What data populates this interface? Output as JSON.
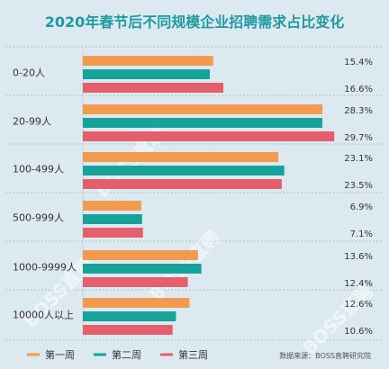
{
  "chart_data": {
    "type": "bar",
    "orientation": "horizontal",
    "title": "2020年春节后不同规模企业招聘需求占比变化",
    "categories": [
      "0-20人",
      "20-99人",
      "100-499人",
      "500-999人",
      "1000-9999人",
      "10000人以上"
    ],
    "series": [
      {
        "name": "第一周",
        "color": "#f29b4e",
        "values": [
          15.4,
          28.3,
          23.1,
          6.9,
          13.6,
          12.6
        ]
      },
      {
        "name": "第二周",
        "color": "#17a39a",
        "values": [
          null,
          null,
          null,
          null,
          null,
          null
        ]
      },
      {
        "name": "第三周",
        "color": "#e35f6b",
        "values": [
          16.6,
          29.7,
          23.5,
          7.1,
          12.4,
          10.6
        ]
      }
    ],
    "value_labels": [
      [
        "15.4%",
        "16.6%"
      ],
      [
        "28.3%",
        "29.7%"
      ],
      [
        "23.1%",
        "23.5%"
      ],
      [
        "6.9%",
        "7.1%"
      ],
      [
        "13.6%",
        "12.4%"
      ],
      [
        "12.6%",
        "10.6%"
      ]
    ],
    "xlim": [
      0,
      30
    ],
    "legend_position": "bottom-left",
    "source": "数据来源：BOSS直聘研究院",
    "watermark": "BOSS直聘"
  }
}
